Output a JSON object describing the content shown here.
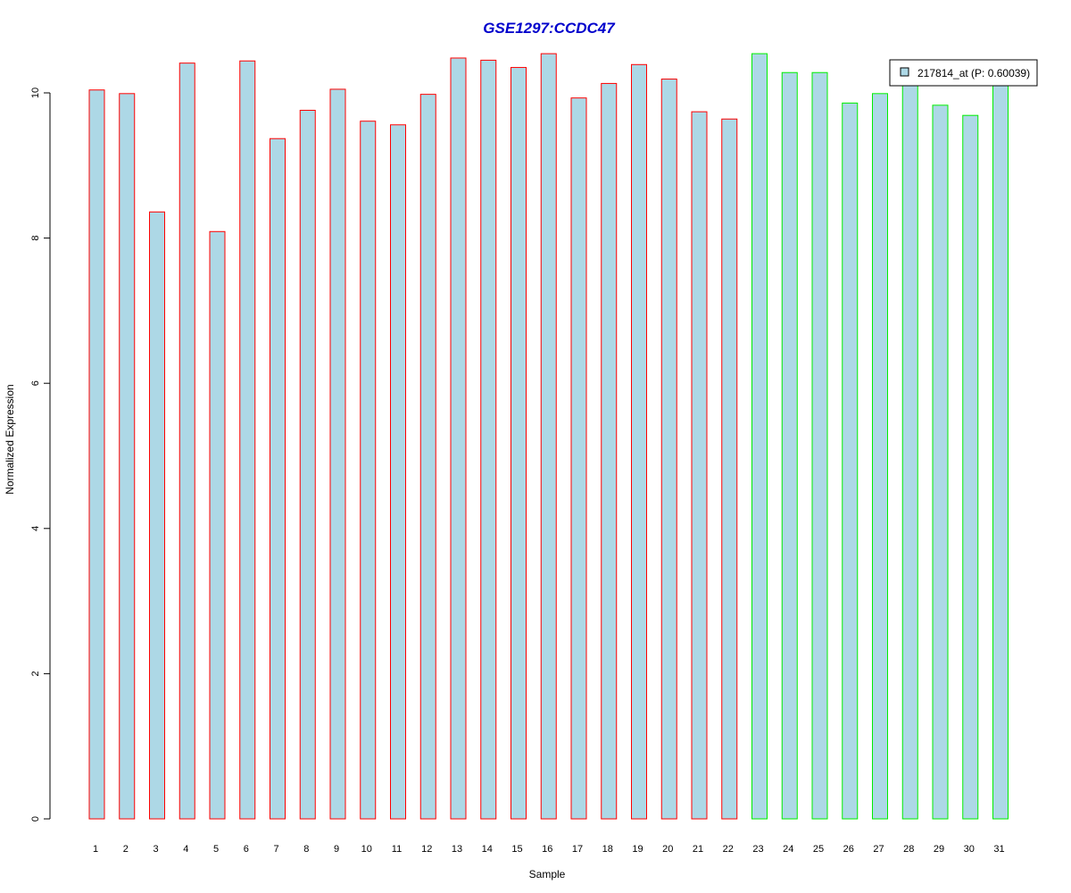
{
  "chart_data": {
    "type": "bar",
    "title": "GSE1297:CCDC47",
    "xlabel": "Sample",
    "ylabel": "Normalized Expression",
    "ylim": [
      0,
      10.6
    ],
    "yticks": [
      0,
      2,
      4,
      6,
      8,
      10
    ],
    "categories": [
      "1",
      "2",
      "3",
      "4",
      "5",
      "6",
      "7",
      "8",
      "9",
      "10",
      "11",
      "12",
      "13",
      "14",
      "15",
      "16",
      "17",
      "18",
      "19",
      "20",
      "21",
      "22",
      "23",
      "24",
      "25",
      "26",
      "27",
      "28",
      "29",
      "30",
      "31"
    ],
    "series": [
      {
        "name": "217814_at (P: 0.60039)",
        "values": [
          10.04,
          9.99,
          8.36,
          10.41,
          8.09,
          10.44,
          9.37,
          9.76,
          10.05,
          9.61,
          9.56,
          9.98,
          10.48,
          10.45,
          10.35,
          10.54,
          9.93,
          10.13,
          10.39,
          10.19,
          9.74,
          9.64,
          10.54,
          10.28,
          10.28,
          9.86,
          9.99,
          10.12,
          9.83,
          9.69,
          10.11
        ]
      }
    ],
    "groups": [
      {
        "from": 1,
        "to": 22,
        "border_color": "#ff0000"
      },
      {
        "from": 23,
        "to": 31,
        "border_color": "#00ee00"
      }
    ],
    "fill_color": "#add8e6",
    "title_color": "#0000cc",
    "legend": {
      "placement": "top-right",
      "label": "217814_at (P: 0.60039)"
    },
    "grid": false
  }
}
